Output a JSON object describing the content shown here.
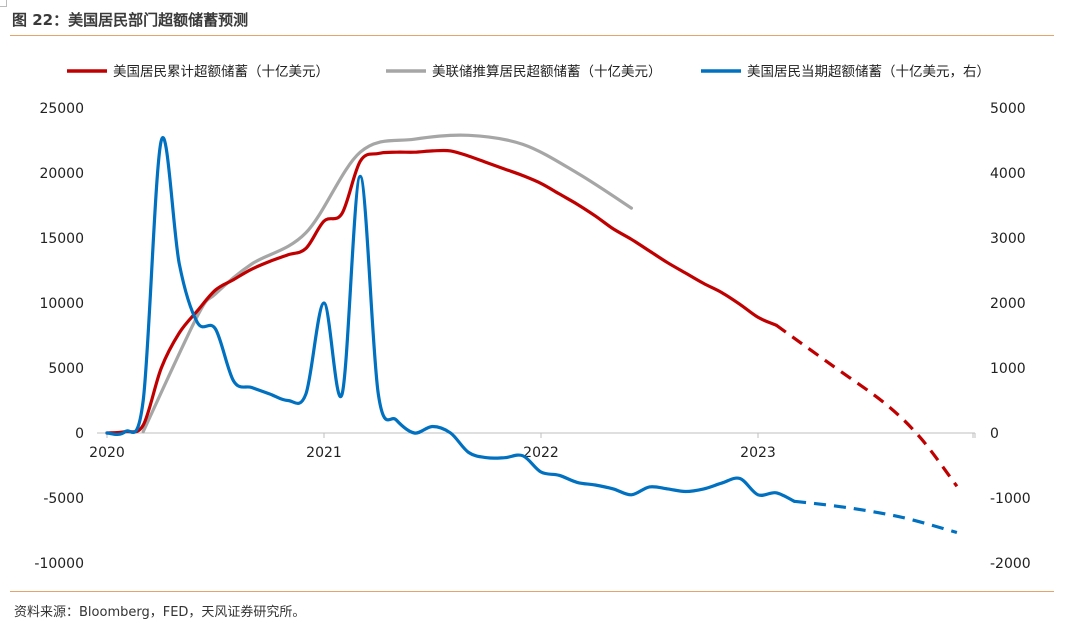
{
  "header": {
    "title": "图 22：美国居民部门超额储蓄预测"
  },
  "footer": {
    "source": "资料来源：Bloomberg，FED，天风证券研究所。"
  },
  "chart_data": {
    "type": "line",
    "title": "图 22：美国居民部门超额储蓄预测",
    "grid": false,
    "legend_position": "top",
    "x_axis": {
      "type": "date",
      "range": [
        "2020-01",
        "2023-12"
      ],
      "tick_labels": [
        "2020",
        "2021",
        "2022",
        "2023"
      ],
      "tick_values": [
        "2020-01",
        "2021-01",
        "2022-01",
        "2023-01"
      ]
    },
    "y_left": {
      "range": [
        -10000,
        25000
      ],
      "ticks": [
        -10000,
        -5000,
        0,
        5000,
        10000,
        15000,
        20000,
        25000
      ],
      "tick_labels": [
        "-10000",
        "-5000",
        "0",
        "5000",
        "10000",
        "15000",
        "20000",
        "25000"
      ]
    },
    "y_right": {
      "range": [
        -2000,
        5000
      ],
      "ticks": [
        -2000,
        -1000,
        0,
        1000,
        2000,
        3000,
        4000,
        5000
      ],
      "tick_labels": [
        "-2000",
        "-1000",
        "0",
        "1000",
        "2000",
        "3000",
        "4000",
        "5000"
      ]
    },
    "series": [
      {
        "name": "美国居民累计超额储蓄（十亿美元）",
        "axis": "left",
        "color": "#c00000",
        "points": [
          [
            "2020-01",
            0
          ],
          [
            "2020-02",
            100
          ],
          [
            "2020-03",
            600
          ],
          [
            "2020-04",
            5000
          ],
          [
            "2020-05",
            7700
          ],
          [
            "2020-06",
            9400
          ],
          [
            "2020-07",
            11000
          ],
          [
            "2020-08",
            11800
          ],
          [
            "2020-09",
            12600
          ],
          [
            "2020-10",
            13200
          ],
          [
            "2020-11",
            13700
          ],
          [
            "2020-12",
            14200
          ],
          [
            "2021-01",
            16300
          ],
          [
            "2021-02",
            16900
          ],
          [
            "2021-03",
            20900
          ],
          [
            "2021-04",
            21500
          ],
          [
            "2021-05",
            21600
          ],
          [
            "2021-06",
            21600
          ],
          [
            "2021-07",
            21700
          ],
          [
            "2021-08",
            21700
          ],
          [
            "2021-09",
            21300
          ],
          [
            "2021-10",
            20800
          ],
          [
            "2021-11",
            20300
          ],
          [
            "2021-12",
            19800
          ],
          [
            "2022-01",
            19200
          ],
          [
            "2022-02",
            18400
          ],
          [
            "2022-03",
            17600
          ],
          [
            "2022-04",
            16700
          ],
          [
            "2022-05",
            15700
          ],
          [
            "2022-06",
            14900
          ],
          [
            "2022-07",
            14000
          ],
          [
            "2022-08",
            13100
          ],
          [
            "2022-09",
            12300
          ],
          [
            "2022-10",
            11500
          ],
          [
            "2022-11",
            10800
          ],
          [
            "2022-12",
            9900
          ],
          [
            "2023-01",
            8900
          ],
          [
            "2023-02",
            8300
          ]
        ],
        "projection": [
          [
            "2023-02",
            8300
          ],
          [
            "2023-05",
            5300
          ],
          [
            "2023-08",
            2300
          ],
          [
            "2023-10",
            -400
          ],
          [
            "2023-12",
            -4100
          ]
        ]
      },
      {
        "name": "美联储推算居民超额储蓄（十亿美元）",
        "axis": "left",
        "color": "#a6a6a6",
        "points": [
          [
            "2020-03",
            100
          ],
          [
            "2020-06",
            9000
          ],
          [
            "2020-07",
            10700
          ],
          [
            "2020-09",
            13000
          ],
          [
            "2020-12",
            15400
          ],
          [
            "2021-03",
            21600
          ],
          [
            "2021-06",
            22600
          ],
          [
            "2021-09",
            22900
          ],
          [
            "2021-12",
            22200
          ],
          [
            "2022-03",
            20000
          ],
          [
            "2022-06",
            17300
          ]
        ]
      },
      {
        "name": "美国居民当期超额储蓄（十亿美元，右）",
        "axis": "right",
        "color": "#0070c0",
        "points": [
          [
            "2020-01",
            0
          ],
          [
            "2020-02",
            20
          ],
          [
            "2020-03",
            500
          ],
          [
            "2020-04",
            4500
          ],
          [
            "2020-05",
            2600
          ],
          [
            "2020-06",
            1700
          ],
          [
            "2020-07",
            1600
          ],
          [
            "2020-08",
            800
          ],
          [
            "2020-09",
            700
          ],
          [
            "2020-10",
            600
          ],
          [
            "2020-11",
            500
          ],
          [
            "2020-12",
            600
          ],
          [
            "2021-01",
            2000
          ],
          [
            "2021-02",
            600
          ],
          [
            "2021-03",
            3950
          ],
          [
            "2021-04",
            600
          ],
          [
            "2021-05",
            200
          ],
          [
            "2021-06",
            0
          ],
          [
            "2021-07",
            100
          ],
          [
            "2021-08",
            0
          ],
          [
            "2021-09",
            -300
          ],
          [
            "2021-10",
            -380
          ],
          [
            "2021-11",
            -380
          ],
          [
            "2021-12",
            -350
          ],
          [
            "2022-01",
            -600
          ],
          [
            "2022-02",
            -650
          ],
          [
            "2022-03",
            -760
          ],
          [
            "2022-04",
            -800
          ],
          [
            "2022-05",
            -860
          ],
          [
            "2022-06",
            -950
          ],
          [
            "2022-07",
            -830
          ],
          [
            "2022-08",
            -860
          ],
          [
            "2022-09",
            -900
          ],
          [
            "2022-10",
            -860
          ],
          [
            "2022-11",
            -770
          ],
          [
            "2022-12",
            -700
          ],
          [
            "2023-01",
            -950
          ],
          [
            "2023-02",
            -920
          ],
          [
            "2023-03",
            -1050
          ]
        ],
        "projection": [
          [
            "2023-03",
            -1050
          ],
          [
            "2023-06",
            -1150
          ],
          [
            "2023-09",
            -1300
          ],
          [
            "2023-12",
            -1530
          ]
        ]
      }
    ]
  }
}
